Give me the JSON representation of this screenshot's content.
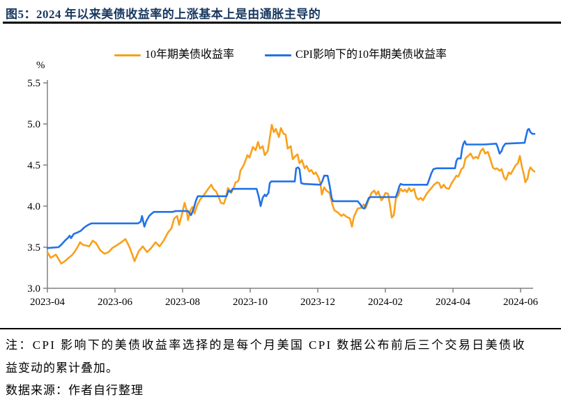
{
  "figure": {
    "title": "图5：2024 年以来美债收益率的上涨基本上是由通胀主导的",
    "note_lines": [
      "注：CPI 影响下的美债收益率选择的是每个月美国 CPI 数据公布前后三个交易日美债收",
      "益变动的累计叠加。"
    ],
    "source": "数据来源：作者自行整理"
  },
  "chart_data": {
    "type": "line",
    "title": "",
    "unit_label": "%",
    "xlabel": "",
    "ylabel": "%",
    "ylim": [
      3.0,
      5.5
    ],
    "y_ticks": [
      3.0,
      3.5,
      4.0,
      4.5,
      5.0,
      5.5
    ],
    "x_tick_labels": [
      "2023-04",
      "2023-06",
      "2023-08",
      "2023-10",
      "2023-12",
      "2024-02",
      "2024-04",
      "2024-06"
    ],
    "x_tick_months": [
      0,
      2,
      4,
      6,
      8,
      10,
      12,
      14
    ],
    "xlim_months": [
      0,
      14.45
    ],
    "grid": false,
    "legend_position": "top-center",
    "axis_color": "#808080",
    "series": [
      {
        "name": "10年期美债收益率",
        "color": "#F9A01B",
        "points": [
          [
            0.0,
            3.44
          ],
          [
            0.1,
            3.37
          ],
          [
            0.25,
            3.41
          ],
          [
            0.41,
            3.3
          ],
          [
            0.52,
            3.33
          ],
          [
            0.6,
            3.36
          ],
          [
            0.72,
            3.4
          ],
          [
            0.8,
            3.44
          ],
          [
            0.89,
            3.5
          ],
          [
            0.97,
            3.56
          ],
          [
            1.05,
            3.53
          ],
          [
            1.24,
            3.51
          ],
          [
            1.34,
            3.58
          ],
          [
            1.44,
            3.55
          ],
          [
            1.57,
            3.46
          ],
          [
            1.69,
            3.42
          ],
          [
            1.81,
            3.44
          ],
          [
            1.92,
            3.49
          ],
          [
            2.04,
            3.52
          ],
          [
            2.19,
            3.56
          ],
          [
            2.31,
            3.6
          ],
          [
            2.43,
            3.5
          ],
          [
            2.52,
            3.4
          ],
          [
            2.58,
            3.33
          ],
          [
            2.7,
            3.45
          ],
          [
            2.82,
            3.51
          ],
          [
            2.95,
            3.44
          ],
          [
            3.07,
            3.49
          ],
          [
            3.2,
            3.56
          ],
          [
            3.32,
            3.51
          ],
          [
            3.44,
            3.58
          ],
          [
            3.57,
            3.68
          ],
          [
            3.67,
            3.73
          ],
          [
            3.75,
            3.85
          ],
          [
            3.84,
            3.88
          ],
          [
            3.9,
            3.77
          ],
          [
            3.98,
            3.9
          ],
          [
            4.06,
            4.04
          ],
          [
            4.12,
            3.95
          ],
          [
            4.16,
            3.83
          ],
          [
            4.23,
            3.95
          ],
          [
            4.29,
            3.99
          ],
          [
            4.35,
            3.91
          ],
          [
            4.43,
            4.01
          ],
          [
            4.52,
            4.08
          ],
          [
            4.64,
            4.14
          ],
          [
            4.74,
            4.2
          ],
          [
            4.85,
            4.26
          ],
          [
            4.91,
            4.21
          ],
          [
            4.99,
            4.18
          ],
          [
            5.07,
            4.11
          ],
          [
            5.13,
            4.04
          ],
          [
            5.22,
            4.03
          ],
          [
            5.28,
            4.1
          ],
          [
            5.34,
            4.22
          ],
          [
            5.4,
            4.19
          ],
          [
            5.44,
            4.16
          ],
          [
            5.51,
            4.22
          ],
          [
            5.57,
            4.29
          ],
          [
            5.63,
            4.3
          ],
          [
            5.67,
            4.33
          ],
          [
            5.71,
            4.43
          ],
          [
            5.77,
            4.47
          ],
          [
            5.81,
            4.5
          ],
          [
            5.92,
            4.62
          ],
          [
            5.98,
            4.59
          ],
          [
            6.08,
            4.72
          ],
          [
            6.16,
            4.68
          ],
          [
            6.23,
            4.78
          ],
          [
            6.29,
            4.7
          ],
          [
            6.37,
            4.73
          ],
          [
            6.43,
            4.62
          ],
          [
            6.52,
            4.67
          ],
          [
            6.58,
            4.83
          ],
          [
            6.64,
            4.99
          ],
          [
            6.7,
            4.9
          ],
          [
            6.76,
            4.94
          ],
          [
            6.85,
            4.84
          ],
          [
            6.91,
            4.95
          ],
          [
            6.99,
            4.88
          ],
          [
            7.05,
            4.87
          ],
          [
            7.11,
            4.7
          ],
          [
            7.2,
            4.73
          ],
          [
            7.26,
            4.57
          ],
          [
            7.34,
            4.61
          ],
          [
            7.4,
            4.63
          ],
          [
            7.46,
            4.52
          ],
          [
            7.53,
            4.56
          ],
          [
            7.61,
            4.46
          ],
          [
            7.67,
            4.49
          ],
          [
            7.75,
            4.42
          ],
          [
            7.81,
            4.44
          ],
          [
            7.88,
            4.39
          ],
          [
            7.94,
            4.41
          ],
          [
            8.02,
            4.35
          ],
          [
            8.08,
            4.27
          ],
          [
            8.12,
            4.14
          ],
          [
            8.19,
            4.23
          ],
          [
            8.25,
            4.19
          ],
          [
            8.35,
            4.16
          ],
          [
            8.43,
            4.02
          ],
          [
            8.49,
            3.95
          ],
          [
            8.6,
            3.92
          ],
          [
            8.7,
            3.88
          ],
          [
            8.76,
            3.9
          ],
          [
            8.85,
            3.87
          ],
          [
            8.95,
            3.85
          ],
          [
            9.01,
            3.75
          ],
          [
            9.07,
            3.87
          ],
          [
            9.18,
            3.97
          ],
          [
            9.28,
            3.98
          ],
          [
            9.36,
            4.02
          ],
          [
            9.42,
            3.98
          ],
          [
            9.48,
            4.05
          ],
          [
            9.59,
            4.16
          ],
          [
            9.67,
            4.19
          ],
          [
            9.73,
            4.14
          ],
          [
            9.79,
            4.18
          ],
          [
            9.88,
            4.07
          ],
          [
            9.94,
            4.1
          ],
          [
            10.0,
            4.16
          ],
          [
            10.08,
            4.15
          ],
          [
            10.14,
            4.0
          ],
          [
            10.19,
            3.86
          ],
          [
            10.25,
            3.89
          ],
          [
            10.31,
            4.09
          ],
          [
            10.39,
            4.14
          ],
          [
            10.45,
            4.21
          ],
          [
            10.52,
            4.18
          ],
          [
            10.58,
            4.2
          ],
          [
            10.64,
            4.17
          ],
          [
            10.7,
            4.22
          ],
          [
            10.76,
            4.18
          ],
          [
            10.85,
            4.21
          ],
          [
            10.91,
            4.11
          ],
          [
            10.97,
            4.08
          ],
          [
            11.05,
            4.1
          ],
          [
            11.11,
            4.07
          ],
          [
            11.18,
            4.12
          ],
          [
            11.24,
            4.16
          ],
          [
            11.32,
            4.2
          ],
          [
            11.38,
            4.23
          ],
          [
            11.44,
            4.26
          ],
          [
            11.53,
            4.29
          ],
          [
            11.59,
            4.28
          ],
          [
            11.65,
            4.22
          ],
          [
            11.73,
            4.26
          ],
          [
            11.79,
            4.22
          ],
          [
            11.88,
            4.21
          ],
          [
            11.96,
            4.28
          ],
          [
            12.04,
            4.33
          ],
          [
            12.1,
            4.37
          ],
          [
            12.16,
            4.36
          ],
          [
            12.25,
            4.45
          ],
          [
            12.31,
            4.47
          ],
          [
            12.37,
            4.58
          ],
          [
            12.45,
            4.61
          ],
          [
            12.52,
            4.64
          ],
          [
            12.6,
            4.58
          ],
          [
            12.68,
            4.6
          ],
          [
            12.74,
            4.58
          ],
          [
            12.82,
            4.67
          ],
          [
            12.89,
            4.7
          ],
          [
            12.95,
            4.64
          ],
          [
            13.03,
            4.66
          ],
          [
            13.09,
            4.59
          ],
          [
            13.18,
            4.47
          ],
          [
            13.24,
            4.45
          ],
          [
            13.3,
            4.46
          ],
          [
            13.38,
            4.43
          ],
          [
            13.44,
            4.45
          ],
          [
            13.51,
            4.35
          ],
          [
            13.57,
            4.32
          ],
          [
            13.65,
            4.41
          ],
          [
            13.71,
            4.39
          ],
          [
            13.79,
            4.45
          ],
          [
            13.86,
            4.5
          ],
          [
            13.92,
            4.52
          ],
          [
            13.98,
            4.61
          ],
          [
            14.04,
            4.48
          ],
          [
            14.1,
            4.38
          ],
          [
            14.14,
            4.29
          ],
          [
            14.21,
            4.34
          ],
          [
            14.25,
            4.43
          ],
          [
            14.29,
            4.47
          ],
          [
            14.35,
            4.44
          ],
          [
            14.41,
            4.42
          ]
        ]
      },
      {
        "name": "CPI影响下的10年期美债收益率",
        "color": "#2272E8",
        "points": [
          [
            0.0,
            3.49
          ],
          [
            0.33,
            3.5
          ],
          [
            0.41,
            3.53
          ],
          [
            0.52,
            3.58
          ],
          [
            0.6,
            3.61
          ],
          [
            0.66,
            3.64
          ],
          [
            0.7,
            3.61
          ],
          [
            0.78,
            3.66
          ],
          [
            0.89,
            3.68
          ],
          [
            0.99,
            3.7
          ],
          [
            1.09,
            3.74
          ],
          [
            1.2,
            3.77
          ],
          [
            1.3,
            3.79
          ],
          [
            2.68,
            3.79
          ],
          [
            2.76,
            3.81
          ],
          [
            2.8,
            3.88
          ],
          [
            2.87,
            3.75
          ],
          [
            2.93,
            3.82
          ],
          [
            3.01,
            3.88
          ],
          [
            3.09,
            3.91
          ],
          [
            3.15,
            3.93
          ],
          [
            3.71,
            3.93
          ],
          [
            3.79,
            3.94
          ],
          [
            4.16,
            3.94
          ],
          [
            4.25,
            3.89
          ],
          [
            4.33,
            3.97
          ],
          [
            4.39,
            4.06
          ],
          [
            4.45,
            4.12
          ],
          [
            5.3,
            4.12
          ],
          [
            5.36,
            4.19
          ],
          [
            5.42,
            4.17
          ],
          [
            5.48,
            4.21
          ],
          [
            6.19,
            4.21
          ],
          [
            6.25,
            4.12
          ],
          [
            6.31,
            4.0
          ],
          [
            6.37,
            4.1
          ],
          [
            6.43,
            4.14
          ],
          [
            6.47,
            4.12
          ],
          [
            6.54,
            4.16
          ],
          [
            6.58,
            4.28
          ],
          [
            6.62,
            4.3
          ],
          [
            7.32,
            4.3
          ],
          [
            7.36,
            4.46
          ],
          [
            7.42,
            4.47
          ],
          [
            7.46,
            4.45
          ],
          [
            7.51,
            4.28
          ],
          [
            7.59,
            4.27
          ],
          [
            8.08,
            4.26
          ],
          [
            8.14,
            4.31
          ],
          [
            8.19,
            4.37
          ],
          [
            8.29,
            4.37
          ],
          [
            8.35,
            4.25
          ],
          [
            8.41,
            4.1
          ],
          [
            8.45,
            4.06
          ],
          [
            9.18,
            4.06
          ],
          [
            9.26,
            4.02
          ],
          [
            9.32,
            3.98
          ],
          [
            9.38,
            3.97
          ],
          [
            9.44,
            4.03
          ],
          [
            9.51,
            4.1
          ],
          [
            9.57,
            4.11
          ],
          [
            10.31,
            4.11
          ],
          [
            10.37,
            4.18
          ],
          [
            10.41,
            4.24
          ],
          [
            10.45,
            4.27
          ],
          [
            10.52,
            4.26
          ],
          [
            11.24,
            4.26
          ],
          [
            11.3,
            4.33
          ],
          [
            11.36,
            4.4
          ],
          [
            11.42,
            4.45
          ],
          [
            11.51,
            4.46
          ],
          [
            12.06,
            4.46
          ],
          [
            12.1,
            4.55
          ],
          [
            12.14,
            4.58
          ],
          [
            12.23,
            4.58
          ],
          [
            12.27,
            4.7
          ],
          [
            12.31,
            4.76
          ],
          [
            12.35,
            4.79
          ],
          [
            12.39,
            4.75
          ],
          [
            12.93,
            4.75
          ],
          [
            13.28,
            4.76
          ],
          [
            13.32,
            4.72
          ],
          [
            13.38,
            4.64
          ],
          [
            13.44,
            4.67
          ],
          [
            13.48,
            4.72
          ],
          [
            13.55,
            4.76
          ],
          [
            14.12,
            4.77
          ],
          [
            14.16,
            4.85
          ],
          [
            14.21,
            4.93
          ],
          [
            14.25,
            4.94
          ],
          [
            14.29,
            4.9
          ],
          [
            14.35,
            4.88
          ],
          [
            14.41,
            4.88
          ]
        ]
      }
    ]
  }
}
